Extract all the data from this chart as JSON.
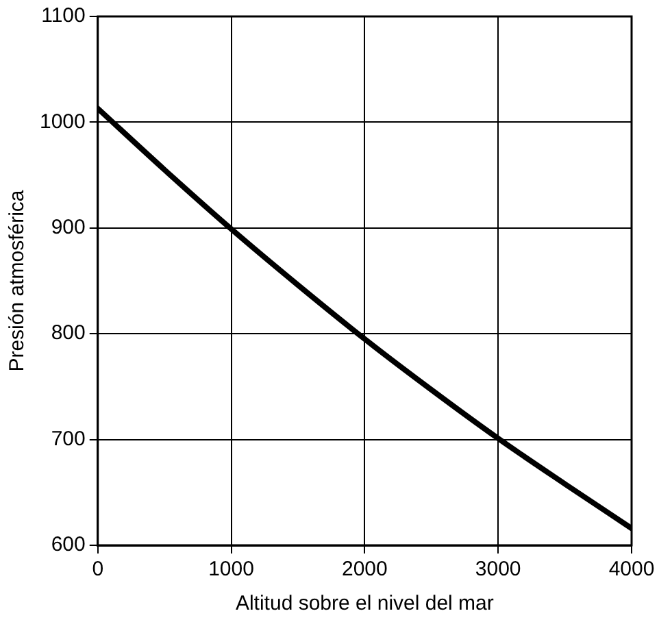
{
  "chart_data": {
    "type": "line",
    "xlabel": "Altitud sobre el nivel del mar",
    "ylabel": "Presión atmosférica",
    "x": [
      0,
      500,
      1000,
      1500,
      2000,
      2500,
      3000,
      3500,
      4000
    ],
    "series": [
      {
        "color": "#000000",
        "values": [
          1013,
          955,
          899,
          846,
          795,
          747,
          701,
          658,
          616
        ]
      }
    ],
    "xlim": [
      0,
      4000
    ],
    "xticks": [
      0,
      1000,
      2000,
      3000,
      4000
    ],
    "ylim": [
      600,
      1100
    ],
    "yticks": [
      600,
      700,
      800,
      900,
      1000,
      1100
    ],
    "grid": true,
    "legend": false,
    "marker": "none",
    "line_style": "solid"
  }
}
